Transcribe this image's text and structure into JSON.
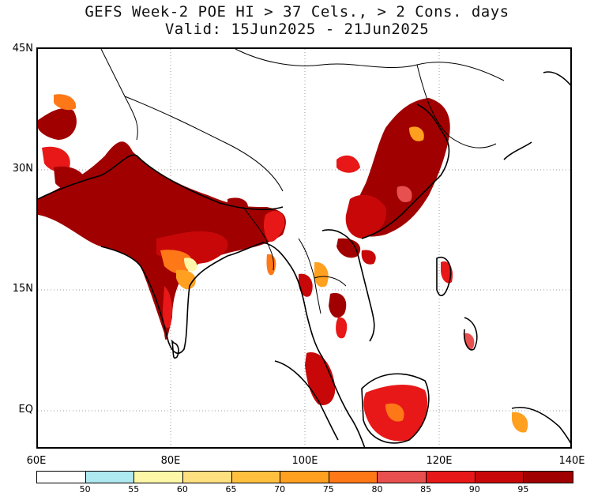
{
  "title": {
    "line1": "GEFS Week-2 POE HI > 37 Cels., > 2 Cons. days",
    "line2": "Valid: 15Jun2025 - 21Jun2025"
  },
  "map": {
    "lat_labels": [
      "45N",
      "30N",
      "15N",
      "EQ"
    ],
    "lon_labels": [
      "60E",
      "80E",
      "100E",
      "120E",
      "140E"
    ],
    "lat_values": [
      45,
      30,
      15,
      0
    ],
    "lon_values": [
      60,
      80,
      100,
      120,
      140
    ],
    "extent": {
      "lon_min": 60,
      "lon_max": 140,
      "lat_min": -5,
      "lat_max": 45
    },
    "gridlines": "dotted",
    "shaded_regions": [
      {
        "region": "India / Pakistan",
        "level": "95"
      },
      {
        "region": "Eastern China",
        "level": "95"
      },
      {
        "region": "Indochina",
        "level": "90"
      },
      {
        "region": "Borneo",
        "level": "90"
      },
      {
        "region": "Sumatra / Malay Peninsula",
        "level": "90"
      },
      {
        "region": "Philippines (Luzon)",
        "level": "85"
      },
      {
        "region": "Iran",
        "level": "95"
      }
    ]
  },
  "colorbar": {
    "colors": [
      "#ffffff",
      "#aee8f0",
      "#fff7a8",
      "#ffe080",
      "#ffc040",
      "#ffa020",
      "#ff7818",
      "#e85050",
      "#e81818",
      "#c80808",
      "#a00000"
    ],
    "labels": [
      "50",
      "55",
      "60",
      "65",
      "70",
      "75",
      "80",
      "85",
      "90",
      "95"
    ]
  }
}
